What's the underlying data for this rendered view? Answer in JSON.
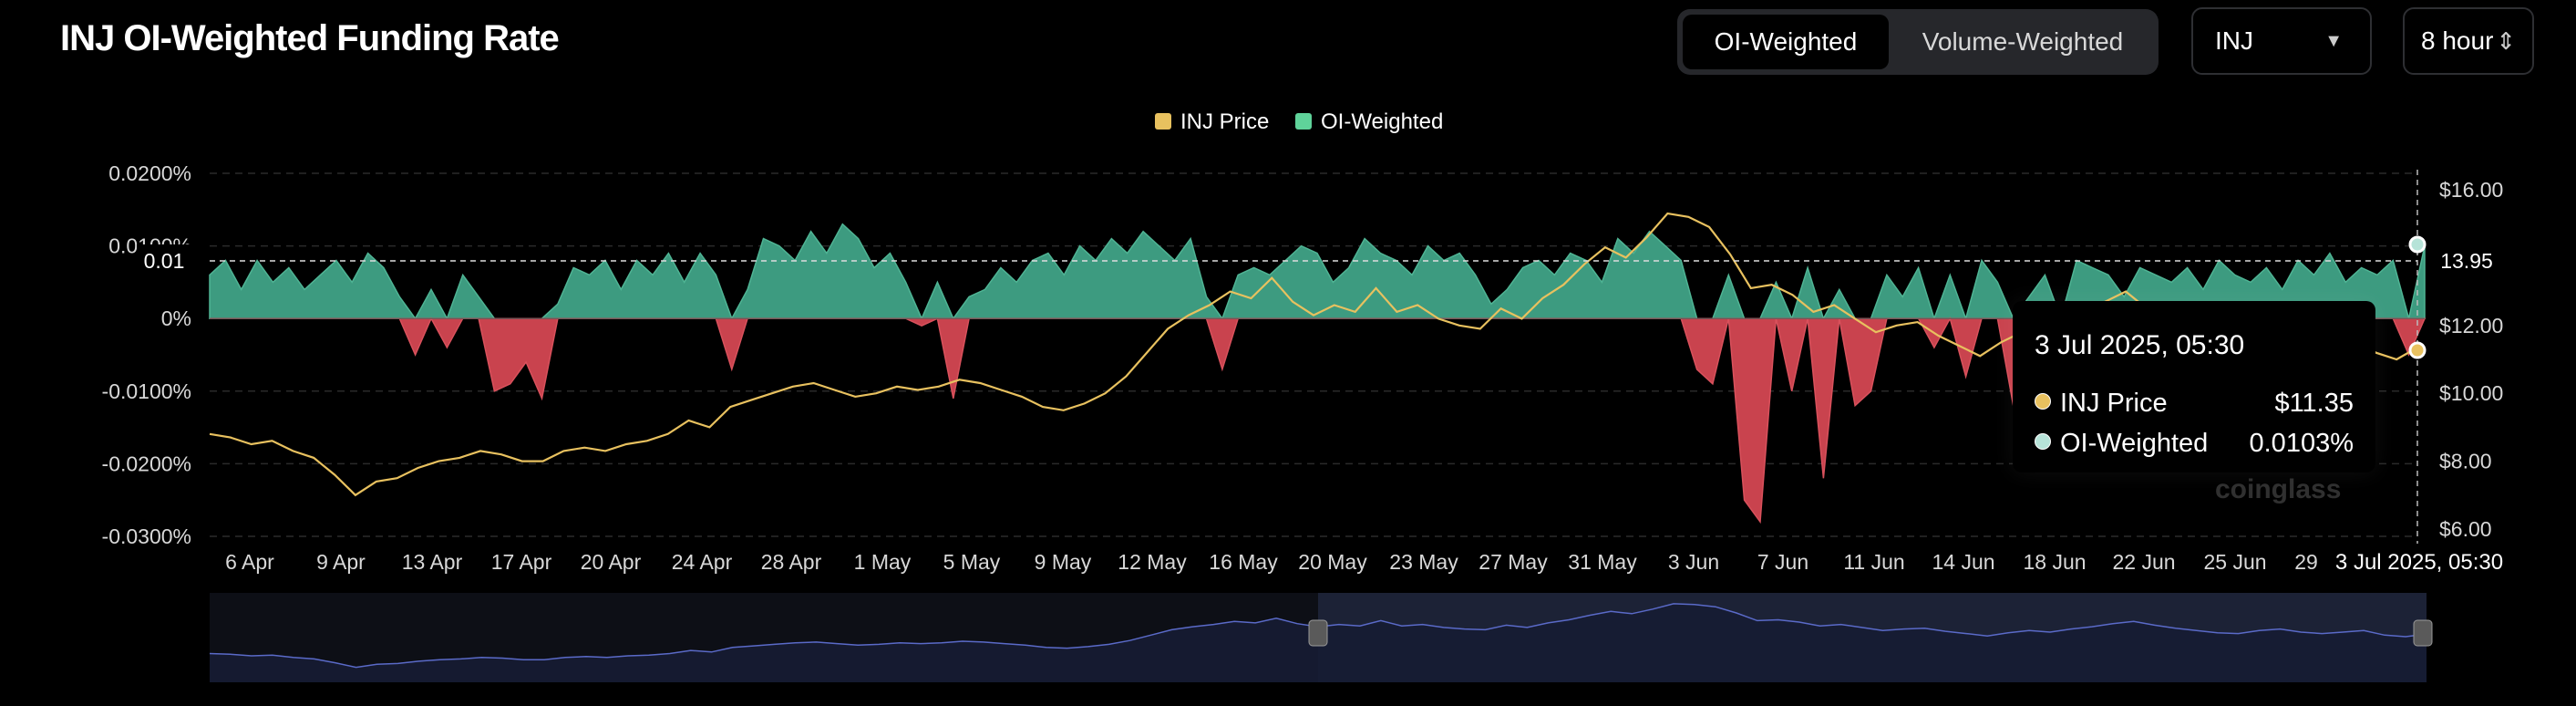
{
  "title": "INJ OI-Weighted Funding Rate",
  "toggle": {
    "options": [
      "OI-Weighted",
      "Volume-Weighted"
    ],
    "active": "OI-Weighted"
  },
  "symbol_select": {
    "value": "INJ",
    "icon": "chevron-down-icon"
  },
  "interval_select": {
    "value": "8 hour",
    "icon": "up-down-chevron-icon"
  },
  "watermark": "coinglass",
  "colors": {
    "price": "#e8c15f",
    "positive": "#3d9b80",
    "negative": "#c9434e",
    "legend_oi": "#5fd39a",
    "brush": "#1c2236"
  },
  "tooltip": {
    "date": "3 Jul 2025, 05:30",
    "rows": [
      {
        "label": "INJ Price",
        "value": "$11.35",
        "color": "#e8c15f"
      },
      {
        "label": "OI-Weighted",
        "value": "0.0103%",
        "color": "#b6e3d8"
      }
    ]
  },
  "crosshair": {
    "left_label": "0.01",
    "right_label": "13.95",
    "x_label": "3 Jul 2025, 05:30"
  },
  "chart_data": {
    "type": "bar",
    "legend": [
      {
        "name": "INJ Price",
        "color": "#e8c15f"
      },
      {
        "name": "OI-Weighted",
        "color": "#5fd39a"
      }
    ],
    "legend_position": "top-center",
    "y_left": {
      "ticks": [
        "0.0200%",
        "0.0100%",
        "0%",
        "-0.0100%",
        "-0.0200%",
        "-0.0300%"
      ],
      "range": [
        -0.03,
        0.02
      ],
      "unit": "%"
    },
    "y_right": {
      "ticks": [
        "$16.00",
        "$12.00",
        "$10.00",
        "$8.00",
        "$6.00"
      ],
      "range": [
        6,
        16
      ],
      "unit": "$"
    },
    "x_ticks": [
      "6 Apr",
      "9 Apr",
      "13 Apr",
      "17 Apr",
      "20 Apr",
      "24 Apr",
      "28 Apr",
      "1 May",
      "5 May",
      "9 May",
      "12 May",
      "16 May",
      "20 May",
      "23 May",
      "27 May",
      "31 May",
      "3 Jun",
      "7 Jun",
      "11 Jun",
      "14 Jun",
      "18 Jun",
      "22 Jun",
      "25 Jun",
      "29"
    ],
    "grid": true,
    "series": [
      {
        "name": "OI-Weighted",
        "kind": "area",
        "x_range": [
          "6 Apr",
          "3 Jul"
        ],
        "values": [
          0.006,
          0.008,
          0.004,
          0.008,
          0.005,
          0.007,
          0.004,
          0.006,
          0.008,
          0.005,
          0.009,
          0.007,
          0.003,
          -0.005,
          0.004,
          -0.004,
          0.006,
          0.003,
          -0.01,
          -0.009,
          -0.006,
          -0.011,
          0.002,
          0.007,
          0.006,
          0.008,
          0.004,
          0.008,
          0.006,
          0.009,
          0.005,
          0.009,
          0.006,
          -0.007,
          0.004,
          0.011,
          0.01,
          0.008,
          0.012,
          0.009,
          0.013,
          0.011,
          0.007,
          0.009,
          0.005,
          -0.001,
          0.005,
          -0.011,
          0.003,
          0.004,
          0.007,
          0.005,
          0.008,
          0.009,
          0.006,
          0.01,
          0.008,
          0.011,
          0.009,
          0.012,
          0.01,
          0.008,
          0.011,
          0.003,
          -0.007,
          0.006,
          0.007,
          0.006,
          0.008,
          0.01,
          0.009,
          0.005,
          0.007,
          0.011,
          0.009,
          0.008,
          0.006,
          0.01,
          0.008,
          0.009,
          0.006,
          0.002,
          0.004,
          0.007,
          0.008,
          0.006,
          0.009,
          0.008,
          0.005,
          0.011,
          0.009,
          0.012,
          0.01,
          0.008,
          -0.007,
          -0.009,
          0.006,
          -0.025,
          -0.028,
          0.005,
          -0.01,
          0.007,
          -0.022,
          0.004,
          -0.012,
          -0.01,
          0.006,
          0.003,
          0.007,
          -0.004,
          0.006,
          -0.008,
          0.008,
          0.005,
          -0.012,
          0.003,
          0.006,
          -0.004,
          0.008,
          0.007,
          0.006,
          0.003,
          0.007,
          0.006,
          0.005,
          0.007,
          0.004,
          0.008,
          0.006,
          0.005,
          0.007,
          0.004,
          0.008,
          0.006,
          0.009,
          0.005,
          0.007,
          0.006,
          0.008,
          -0.005,
          0.01
        ]
      },
      {
        "name": "INJ Price",
        "kind": "line",
        "values": [
          8.8,
          8.7,
          8.5,
          8.6,
          8.3,
          8.1,
          7.6,
          7.0,
          7.4,
          7.5,
          7.8,
          8.0,
          8.1,
          8.3,
          8.2,
          8.0,
          8.0,
          8.3,
          8.4,
          8.3,
          8.5,
          8.6,
          8.8,
          9.2,
          9.0,
          9.6,
          9.8,
          10.0,
          10.2,
          10.3,
          10.1,
          9.9,
          10.0,
          10.2,
          10.1,
          10.2,
          10.4,
          10.3,
          10.1,
          9.9,
          9.6,
          9.5,
          9.7,
          10.0,
          10.5,
          11.2,
          11.9,
          12.3,
          12.6,
          13.0,
          12.8,
          13.4,
          12.7,
          12.3,
          12.6,
          12.4,
          13.1,
          12.4,
          12.6,
          12.2,
          12.0,
          11.9,
          12.5,
          12.2,
          12.8,
          13.2,
          13.8,
          14.3,
          14.0,
          14.6,
          15.3,
          15.2,
          14.9,
          14.1,
          13.1,
          13.2,
          12.9,
          12.4,
          12.6,
          12.2,
          11.8,
          12.0,
          12.1,
          11.7,
          11.4,
          11.1,
          11.5,
          11.8,
          11.6,
          12.0,
          12.3,
          12.7,
          13.0,
          12.5,
          12.1,
          11.8,
          11.5,
          11.4,
          11.8,
          12.0,
          11.6,
          11.4,
          11.6,
          11.8,
          11.2,
          11.0,
          11.35
        ]
      }
    ]
  }
}
